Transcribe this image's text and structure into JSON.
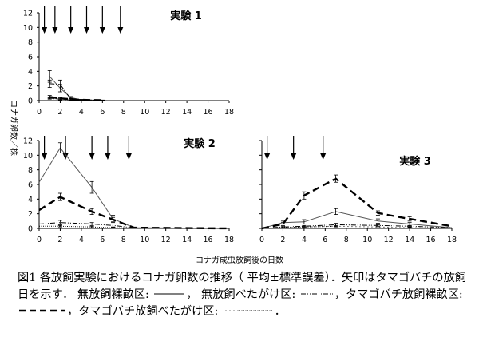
{
  "chart_data": [
    {
      "type": "line",
      "title": "実験 1",
      "xlim": [
        0,
        18
      ],
      "ylim": [
        0,
        12
      ],
      "xticks": [
        0,
        2,
        4,
        6,
        8,
        10,
        12,
        14,
        16,
        18
      ],
      "yticks": [
        0,
        2,
        4,
        6,
        8,
        10,
        12
      ],
      "release_days": [
        0.5,
        1.5,
        3,
        4.5,
        6,
        7.7
      ],
      "series": [
        {
          "name": "無放飼裸畝区",
          "style": "solid",
          "x": [
            1,
            2,
            3,
            4,
            6
          ],
          "y": [
            3.3,
            1.7,
            0.4,
            0.1,
            0.05
          ],
          "err": [
            0.8,
            0.5,
            0.15,
            0.05,
            0.02
          ]
        },
        {
          "name": "無放飼べたがけ区",
          "style": "dashdotdot",
          "x": [
            1,
            2,
            3,
            4,
            6
          ],
          "y": [
            2.3,
            2.2,
            0.2,
            0.1,
            0.05
          ],
          "err": [
            0.5,
            0.6,
            0.1,
            0.05,
            0.02
          ]
        },
        {
          "name": "タマゴバチ放飼裸畝区",
          "style": "dashed",
          "x": [
            1,
            2,
            3,
            4,
            6
          ],
          "y": [
            0.5,
            0.3,
            0.2,
            0.1,
            0.05
          ],
          "err": [
            0.2,
            0.1,
            0.1,
            0.05,
            0.02
          ]
        },
        {
          "name": "タマゴバチ放飼べたがけ区",
          "style": "dotted",
          "x": [
            1,
            2,
            3,
            4,
            6
          ],
          "y": [
            0.3,
            0.2,
            0.1,
            0.05,
            0.02
          ],
          "err": [
            0.1,
            0.1,
            0.05,
            0.02,
            0.01
          ]
        }
      ]
    },
    {
      "type": "line",
      "title": "実験 2",
      "xlim": [
        0,
        18
      ],
      "ylim": [
        0,
        12
      ],
      "xticks": [
        0,
        2,
        4,
        6,
        8,
        10,
        12,
        14,
        16,
        18
      ],
      "yticks": [
        0,
        2,
        4,
        6,
        8,
        10,
        12
      ],
      "release_days": [
        0.5,
        2.5,
        5,
        6.5,
        8.5
      ],
      "series": [
        {
          "name": "無放飼裸畝区",
          "style": "solid",
          "x": [
            0,
            2,
            5,
            7,
            9,
            18
          ],
          "y": [
            6.3,
            11.0,
            5.6,
            1.3,
            0.1,
            0.0
          ],
          "err": [
            0,
            0.7,
            0.8,
            0.5,
            0,
            0
          ]
        },
        {
          "name": "無放飼べたがけ区",
          "style": "dashdotdot",
          "x": [
            0,
            2,
            5,
            7,
            9,
            18
          ],
          "y": [
            0.6,
            0.8,
            0.6,
            0.4,
            0.05,
            0.0
          ],
          "err": [
            0,
            0.3,
            0.2,
            0.2,
            0,
            0
          ]
        },
        {
          "name": "タマゴバチ放飼裸畝区",
          "style": "dashed",
          "x": [
            0,
            2,
            5,
            7,
            9,
            18
          ],
          "y": [
            2.5,
            4.3,
            2.3,
            1.2,
            0.1,
            0.0
          ],
          "err": [
            0,
            0.5,
            0.4,
            0.3,
            0,
            0
          ]
        },
        {
          "name": "タマゴバチ放飼べたがけ区",
          "style": "dotted",
          "x": [
            0,
            2,
            5,
            7,
            9,
            18
          ],
          "y": [
            0.3,
            0.3,
            0.2,
            0.1,
            0.05,
            0.0
          ],
          "err": [
            0,
            0.1,
            0.1,
            0.05,
            0,
            0
          ]
        }
      ]
    },
    {
      "type": "line",
      "title": "実験 3",
      "xlim": [
        0,
        18
      ],
      "ylim": [
        0,
        12
      ],
      "xticks": [
        0,
        2,
        4,
        6,
        8,
        10,
        12,
        14,
        16,
        18
      ],
      "yticks": [
        0,
        2,
        4,
        6,
        8,
        10,
        12
      ],
      "release_days": [
        0.5,
        3,
        5.8
      ],
      "series": [
        {
          "name": "無放飼裸畝区",
          "style": "solid",
          "x": [
            0,
            2,
            4,
            7,
            11,
            14,
            18
          ],
          "y": [
            0.0,
            0.8,
            0.9,
            2.3,
            1.0,
            0.6,
            0.1
          ],
          "err": [
            0,
            0.2,
            0.3,
            0.4,
            0.3,
            0.2,
            0
          ]
        },
        {
          "name": "無放飼べたがけ区",
          "style": "dashdotdot",
          "x": [
            0,
            2,
            4,
            7,
            11,
            14,
            18
          ],
          "y": [
            0.0,
            0.2,
            0.3,
            0.5,
            0.4,
            0.3,
            0.1
          ],
          "err": [
            0,
            0.1,
            0.1,
            0.2,
            0.1,
            0.1,
            0
          ]
        },
        {
          "name": "タマゴバチ放飼裸畝区",
          "style": "dashed",
          "x": [
            0,
            2,
            4,
            7,
            11,
            14,
            18
          ],
          "y": [
            0.0,
            0.6,
            4.5,
            6.8,
            2.1,
            1.3,
            0.3
          ],
          "err": [
            0,
            0.2,
            0.5,
            0.5,
            0.3,
            0.3,
            0
          ]
        },
        {
          "name": "タマゴバチ放飼べたがけ区",
          "style": "dotted",
          "x": [
            0,
            2,
            4,
            7,
            11,
            14,
            18
          ],
          "y": [
            0.0,
            0.1,
            0.2,
            0.3,
            0.2,
            0.1,
            0.05
          ],
          "err": [
            0,
            0.05,
            0.1,
            0.1,
            0.1,
            0.05,
            0
          ]
        }
      ]
    }
  ],
  "ylabel": "コナガ卵数／株",
  "xlabel": "コナガ成虫放飼後の日数",
  "caption": {
    "p1": "図1  各放飼実験におけるコナガ卵数の推移（ 平均±標準誤差）．矢印はタマゴバチの放飼日を示す．   無放飼裸畝区: ",
    "p2": "，   無放飼べたがけ区: ",
    "p3": "，タマゴバチ放飼裸畝区: ",
    "p4": "，タマゴバチ放飼べたがけ区: ",
    "p5": "．"
  }
}
